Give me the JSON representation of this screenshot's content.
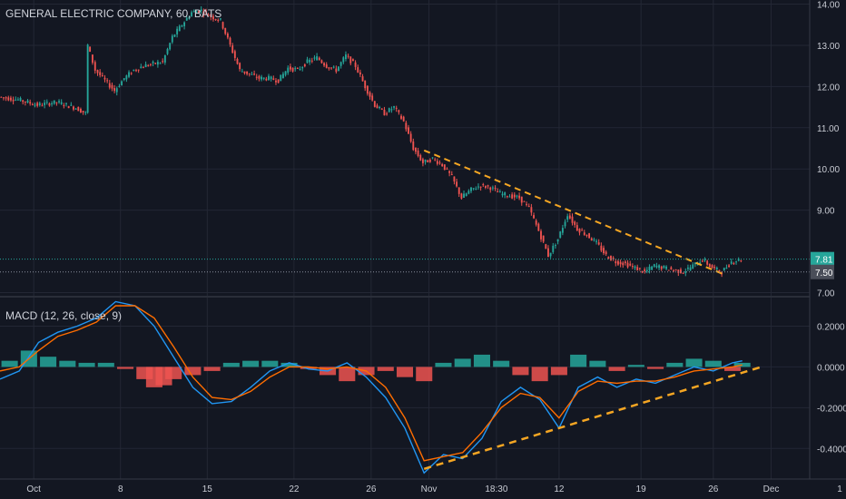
{
  "chart_data": [
    {
      "type": "candlestick",
      "title": "GENERAL ELECTRIC COMPANY, 60, BATS",
      "ylim": [
        6.9,
        14.1
      ],
      "y_ticks": [
        "14.00",
        "13.00",
        "12.00",
        "11.00",
        "10.00",
        "9.00",
        "7.00"
      ],
      "price_labels": [
        {
          "value": 7.81,
          "text": "7.81",
          "color": "#26a69a"
        },
        {
          "value": 7.5,
          "text": "7.50",
          "color": "#4a4e59"
        }
      ],
      "price_path": [
        [
          0,
          11.75
        ],
        [
          2,
          11.68
        ],
        [
          4,
          11.55
        ],
        [
          6,
          11.62
        ],
        [
          8,
          11.48
        ],
        [
          9,
          11.35
        ],
        [
          9.2,
          13.0
        ],
        [
          10,
          12.4
        ],
        [
          11,
          12.15
        ],
        [
          12,
          11.9
        ],
        [
          13,
          12.2
        ],
        [
          14,
          12.4
        ],
        [
          15,
          12.5
        ],
        [
          16,
          12.55
        ],
        [
          17,
          12.6
        ],
        [
          18,
          13.2
        ],
        [
          19,
          13.5
        ],
        [
          20,
          13.8
        ],
        [
          21,
          13.85
        ],
        [
          22,
          13.7
        ],
        [
          23,
          13.6
        ],
        [
          24,
          13.0
        ],
        [
          25,
          12.4
        ],
        [
          26,
          12.3
        ],
        [
          27,
          12.2
        ],
        [
          28,
          12.2
        ],
        [
          29,
          12.15
        ],
        [
          30,
          12.45
        ],
        [
          31,
          12.4
        ],
        [
          32,
          12.6
        ],
        [
          33,
          12.7
        ],
        [
          34,
          12.5
        ],
        [
          35,
          12.4
        ],
        [
          36,
          12.75
        ],
        [
          37,
          12.5
        ],
        [
          38,
          12.0
        ],
        [
          39,
          11.55
        ],
        [
          40,
          11.35
        ],
        [
          41,
          11.5
        ],
        [
          42,
          11.15
        ],
        [
          43,
          10.5
        ],
        [
          44,
          10.15
        ],
        [
          45,
          10.25
        ],
        [
          46,
          10.1
        ],
        [
          47,
          9.8
        ],
        [
          48,
          9.3
        ],
        [
          49,
          9.5
        ],
        [
          50,
          9.6
        ],
        [
          51,
          9.55
        ],
        [
          52,
          9.4
        ],
        [
          53,
          9.35
        ],
        [
          54,
          9.3
        ],
        [
          55,
          9.05
        ],
        [
          56,
          8.5
        ],
        [
          57,
          7.9
        ],
        [
          58,
          8.3
        ],
        [
          59,
          8.9
        ],
        [
          60,
          8.55
        ],
        [
          61,
          8.4
        ],
        [
          62,
          8.2
        ],
        [
          63,
          7.9
        ],
        [
          64,
          7.75
        ],
        [
          65,
          7.7
        ],
        [
          66,
          7.6
        ],
        [
          67,
          7.5
        ],
        [
          68,
          7.65
        ],
        [
          69,
          7.6
        ],
        [
          70,
          7.55
        ],
        [
          71,
          7.5
        ],
        [
          72,
          7.65
        ],
        [
          73,
          7.8
        ],
        [
          74,
          7.6
        ],
        [
          75,
          7.5
        ],
        [
          76,
          7.75
        ],
        [
          77,
          7.81
        ]
      ],
      "trendline": {
        "from": [
          44,
          10.45
        ],
        "to": [
          75,
          7.45
        ],
        "color": "#f5a623",
        "style": "dashed"
      },
      "up_color": "#26a69a",
      "down_color": "#ef5350"
    },
    {
      "type": "line",
      "title": "MACD (12, 26, close, 9)",
      "ylim": [
        -0.55,
        0.34
      ],
      "y_ticks": [
        "0.2000",
        "0.0000",
        "-0.2000",
        "-0.4000"
      ],
      "series": [
        {
          "color": "#2196f3",
          "values": [
            [
              0,
              -0.06
            ],
            [
              2,
              -0.02
            ],
            [
              4,
              0.12
            ],
            [
              6,
              0.17
            ],
            [
              8,
              0.2
            ],
            [
              10,
              0.24
            ],
            [
              12,
              0.32
            ],
            [
              14,
              0.3
            ],
            [
              16,
              0.2
            ],
            [
              18,
              0.05
            ],
            [
              20,
              -0.1
            ],
            [
              22,
              -0.18
            ],
            [
              24,
              -0.17
            ],
            [
              26,
              -0.1
            ],
            [
              28,
              -0.02
            ],
            [
              30,
              0.02
            ],
            [
              32,
              -0.01
            ],
            [
              34,
              -0.02
            ],
            [
              36,
              0.02
            ],
            [
              38,
              -0.05
            ],
            [
              40,
              -0.15
            ],
            [
              42,
              -0.3
            ],
            [
              44,
              -0.52
            ],
            [
              46,
              -0.43
            ],
            [
              48,
              -0.45
            ],
            [
              50,
              -0.35
            ],
            [
              52,
              -0.17
            ],
            [
              54,
              -0.1
            ],
            [
              56,
              -0.16
            ],
            [
              58,
              -0.3
            ],
            [
              60,
              -0.1
            ],
            [
              62,
              -0.05
            ],
            [
              64,
              -0.1
            ],
            [
              66,
              -0.06
            ],
            [
              68,
              -0.08
            ],
            [
              70,
              -0.04
            ],
            [
              72,
              0.0
            ],
            [
              74,
              -0.02
            ],
            [
              76,
              0.02
            ],
            [
              77,
              0.03
            ]
          ]
        },
        {
          "color": "#ff6d00",
          "values": [
            [
              0,
              -0.02
            ],
            [
              2,
              0.0
            ],
            [
              4,
              0.08
            ],
            [
              6,
              0.15
            ],
            [
              8,
              0.18
            ],
            [
              10,
              0.22
            ],
            [
              12,
              0.3
            ],
            [
              14,
              0.3
            ],
            [
              16,
              0.24
            ],
            [
              18,
              0.1
            ],
            [
              20,
              -0.05
            ],
            [
              22,
              -0.15
            ],
            [
              24,
              -0.16
            ],
            [
              26,
              -0.12
            ],
            [
              28,
              -0.05
            ],
            [
              30,
              0.0
            ],
            [
              32,
              0.0
            ],
            [
              34,
              -0.01
            ],
            [
              36,
              0.0
            ],
            [
              38,
              -0.02
            ],
            [
              40,
              -0.1
            ],
            [
              42,
              -0.25
            ],
            [
              44,
              -0.46
            ],
            [
              46,
              -0.44
            ],
            [
              48,
              -0.42
            ],
            [
              50,
              -0.32
            ],
            [
              52,
              -0.2
            ],
            [
              54,
              -0.13
            ],
            [
              56,
              -0.15
            ],
            [
              58,
              -0.25
            ],
            [
              60,
              -0.12
            ],
            [
              62,
              -0.07
            ],
            [
              64,
              -0.08
            ],
            [
              66,
              -0.07
            ],
            [
              68,
              -0.07
            ],
            [
              70,
              -0.05
            ],
            [
              72,
              -0.02
            ],
            [
              74,
              -0.01
            ],
            [
              76,
              0.0
            ],
            [
              77,
              0.01
            ]
          ]
        }
      ],
      "histogram": [
        {
          "x": 1,
          "v": 0.03
        },
        {
          "x": 3,
          "v": 0.08
        },
        {
          "x": 5,
          "v": 0.05
        },
        {
          "x": 7,
          "v": 0.03
        },
        {
          "x": 9,
          "v": 0.02
        },
        {
          "x": 11,
          "v": 0.02
        },
        {
          "x": 13,
          "v": -0.01
        },
        {
          "x": 15,
          "v": -0.06
        },
        {
          "x": 16,
          "v": -0.1
        },
        {
          "x": 17,
          "v": -0.09
        },
        {
          "x": 18,
          "v": -0.06
        },
        {
          "x": 20,
          "v": -0.04
        },
        {
          "x": 22,
          "v": -0.02
        },
        {
          "x": 24,
          "v": 0.02
        },
        {
          "x": 26,
          "v": 0.03
        },
        {
          "x": 28,
          "v": 0.03
        },
        {
          "x": 30,
          "v": 0.02
        },
        {
          "x": 32,
          "v": -0.01
        },
        {
          "x": 34,
          "v": -0.04
        },
        {
          "x": 36,
          "v": -0.07
        },
        {
          "x": 38,
          "v": -0.04
        },
        {
          "x": 40,
          "v": -0.02
        },
        {
          "x": 42,
          "v": -0.05
        },
        {
          "x": 44,
          "v": -0.07
        },
        {
          "x": 46,
          "v": 0.02
        },
        {
          "x": 48,
          "v": 0.04
        },
        {
          "x": 50,
          "v": 0.06
        },
        {
          "x": 52,
          "v": 0.03
        },
        {
          "x": 54,
          "v": -0.04
        },
        {
          "x": 56,
          "v": -0.07
        },
        {
          "x": 58,
          "v": -0.04
        },
        {
          "x": 60,
          "v": 0.06
        },
        {
          "x": 62,
          "v": 0.03
        },
        {
          "x": 64,
          "v": -0.02
        },
        {
          "x": 66,
          "v": 0.01
        },
        {
          "x": 68,
          "v": -0.01
        },
        {
          "x": 70,
          "v": 0.02
        },
        {
          "x": 72,
          "v": 0.04
        },
        {
          "x": 74,
          "v": 0.03
        },
        {
          "x": 76,
          "v": -0.02
        },
        {
          "x": 77,
          "v": 0.02
        }
      ],
      "trendline": {
        "from": [
          44,
          -0.5
        ],
        "to": [
          79,
          0.0
        ],
        "color": "#f5a623",
        "style": "dashed"
      },
      "positive_color": "#26a69a",
      "negative_color": "#ef5350"
    }
  ],
  "x_axis": {
    "max": 84,
    "ticks": [
      {
        "x": 3.5,
        "label": "Oct"
      },
      {
        "x": 12.5,
        "label": "8"
      },
      {
        "x": 21.5,
        "label": "15"
      },
      {
        "x": 30.5,
        "label": "22"
      },
      {
        "x": 38.5,
        "label": "26"
      },
      {
        "x": 44.5,
        "label": "Nov"
      },
      {
        "x": 51.5,
        "label": "18:30"
      },
      {
        "x": 58,
        "label": "12"
      },
      {
        "x": 66.5,
        "label": "19"
      },
      {
        "x": 74,
        "label": "26"
      },
      {
        "x": 80,
        "label": "Dec"
      },
      {
        "x": 89,
        "label": "1"
      }
    ]
  }
}
